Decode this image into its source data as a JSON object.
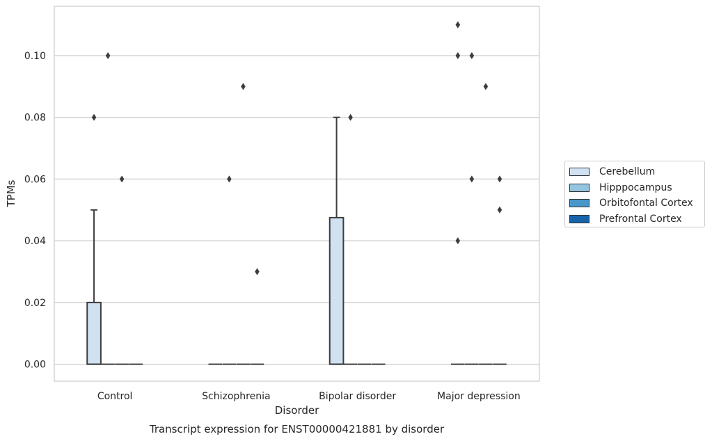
{
  "chart_data": {
    "type": "box",
    "title": "Transcript expression for ENST00000421881 by disorder",
    "xlabel": "Disorder",
    "ylabel": "TPMs",
    "ylim": [
      -0.0055,
      0.116
    ],
    "yticks": [
      0.0,
      0.02,
      0.04,
      0.06,
      0.08,
      0.1
    ],
    "ytick_labels": [
      "0.00",
      "0.02",
      "0.04",
      "0.06",
      "0.08",
      "0.10"
    ],
    "grid": true,
    "legend_position": "right",
    "categories": [
      "Control",
      "Schizophrenia",
      "Bipolar disorder",
      "Major depression"
    ],
    "series": [
      {
        "name": "Cerebellum",
        "color": "#d0e1f2",
        "boxes": [
          {
            "category": "Control",
            "min": 0.0,
            "q1": 0.0,
            "median": 0.0,
            "q3": 0.02,
            "max": 0.05,
            "outliers": [
              0.08
            ]
          },
          {
            "category": "Schizophrenia",
            "min": 0.0,
            "q1": 0.0,
            "median": 0.0,
            "q3": 0.0,
            "max": 0.0,
            "outliers": []
          },
          {
            "category": "Bipolar disorder",
            "min": 0.0,
            "q1": 0.0,
            "median": 0.0,
            "q3": 0.0475,
            "max": 0.08,
            "outliers": []
          },
          {
            "category": "Major depression",
            "min": 0.0,
            "q1": 0.0,
            "median": 0.0,
            "q3": 0.0,
            "max": 0.0,
            "outliers": [
              0.11,
              0.1,
              0.04
            ]
          }
        ]
      },
      {
        "name": "Hipppocampus",
        "color": "#94c4df",
        "boxes": [
          {
            "category": "Control",
            "min": 0.0,
            "q1": 0.0,
            "median": 0.0,
            "q3": 0.0,
            "max": 0.0,
            "outliers": [
              0.1
            ]
          },
          {
            "category": "Schizophrenia",
            "min": 0.0,
            "q1": 0.0,
            "median": 0.0,
            "q3": 0.0,
            "max": 0.0,
            "outliers": [
              0.06
            ]
          },
          {
            "category": "Bipolar disorder",
            "min": 0.0,
            "q1": 0.0,
            "median": 0.0,
            "q3": 0.0,
            "max": 0.0,
            "outliers": [
              0.08
            ]
          },
          {
            "category": "Major depression",
            "min": 0.0,
            "q1": 0.0,
            "median": 0.0,
            "q3": 0.0,
            "max": 0.0,
            "outliers": [
              0.1,
              0.06
            ]
          }
        ]
      },
      {
        "name": "Orbitofontal Cortex",
        "color": "#4a98c9",
        "boxes": [
          {
            "category": "Control",
            "min": 0.0,
            "q1": 0.0,
            "median": 0.0,
            "q3": 0.0,
            "max": 0.0,
            "outliers": [
              0.06
            ]
          },
          {
            "category": "Schizophrenia",
            "min": 0.0,
            "q1": 0.0,
            "median": 0.0,
            "q3": 0.0,
            "max": 0.0,
            "outliers": [
              0.09
            ]
          },
          {
            "category": "Bipolar disorder",
            "min": 0.0,
            "q1": 0.0,
            "median": 0.0,
            "q3": 0.0,
            "max": 0.0,
            "outliers": []
          },
          {
            "category": "Major depression",
            "min": 0.0,
            "q1": 0.0,
            "median": 0.0,
            "q3": 0.0,
            "max": 0.0,
            "outliers": [
              0.09
            ]
          }
        ]
      },
      {
        "name": "Prefrontal Cortex",
        "color": "#1764ab",
        "boxes": [
          {
            "category": "Control",
            "min": 0.0,
            "q1": 0.0,
            "median": 0.0,
            "q3": 0.0,
            "max": 0.0,
            "outliers": []
          },
          {
            "category": "Schizophrenia",
            "min": 0.0,
            "q1": 0.0,
            "median": 0.0,
            "q3": 0.0,
            "max": 0.0,
            "outliers": [
              0.03
            ]
          },
          {
            "category": "Bipolar disorder",
            "min": 0.0,
            "q1": 0.0,
            "median": 0.0,
            "q3": 0.0,
            "max": 0.0,
            "outliers": []
          },
          {
            "category": "Major depression",
            "min": 0.0,
            "q1": 0.0,
            "median": 0.0,
            "q3": 0.0,
            "max": 0.0,
            "outliers": [
              0.06,
              0.05
            ]
          }
        ]
      }
    ]
  }
}
